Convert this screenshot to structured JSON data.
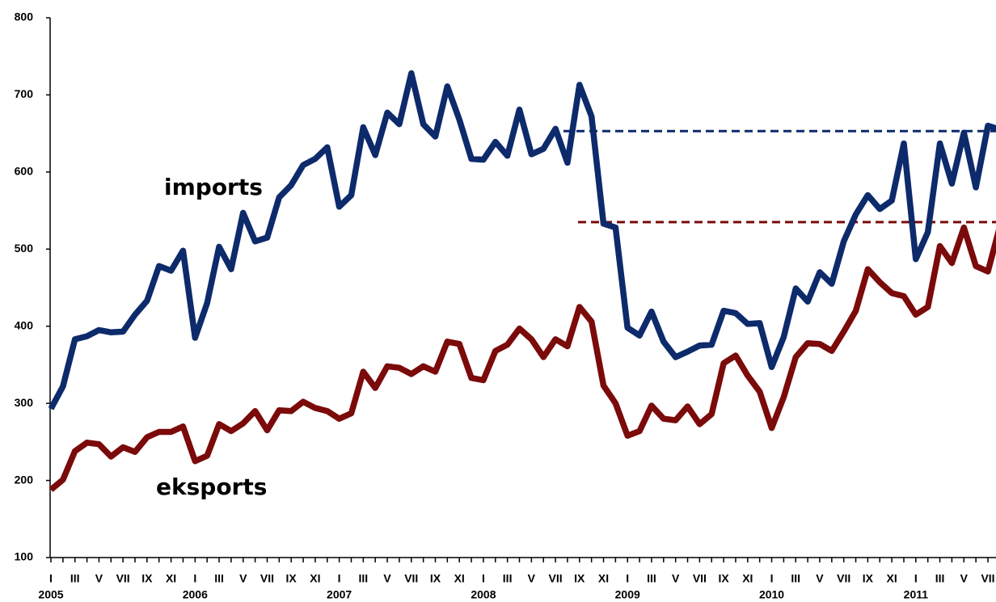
{
  "chart_data": {
    "type": "line",
    "categories": [
      "I",
      null,
      "III",
      null,
      "V",
      null,
      "VII",
      null,
      "IX",
      null,
      "XI",
      null,
      "I",
      null,
      "III",
      null,
      "V",
      null,
      "VII",
      null,
      "IX",
      null,
      "XI",
      null,
      "I",
      null,
      "III",
      null,
      "V",
      null,
      "VII",
      null,
      "IX",
      null,
      "XI",
      null,
      "I",
      null,
      "III",
      null,
      "V",
      null,
      "VII",
      null,
      "IX",
      null,
      "XI",
      null,
      "I",
      null,
      "III",
      null,
      "V",
      null,
      "VII",
      null,
      "IX",
      null,
      "XI",
      null,
      "I",
      null,
      "III",
      null,
      "V",
      null,
      "VII",
      null,
      "IX",
      null,
      "XI",
      null,
      "I",
      null,
      "III",
      null,
      "V",
      null,
      "VII",
      null
    ],
    "years": [
      "2005",
      "2006",
      "2007",
      "2008",
      "2009",
      "2010",
      "2011"
    ],
    "series": [
      {
        "name": "imports",
        "color": "#0d2a6b",
        "values": [
          293,
          322,
          383,
          387,
          395,
          392,
          393,
          415,
          433,
          478,
          472,
          498,
          385,
          430,
          503,
          474,
          547,
          510,
          515,
          567,
          583,
          609,
          617,
          632,
          555,
          570,
          658,
          622,
          677,
          662,
          728,
          662,
          646,
          711,
          668,
          617,
          616,
          639,
          621,
          681,
          623,
          630,
          656,
          612,
          713,
          672,
          533,
          528,
          398,
          388,
          419,
          380,
          360,
          367,
          375,
          376,
          420,
          417,
          403,
          404,
          347,
          386,
          449,
          432,
          470,
          455,
          510,
          545,
          570,
          552,
          563,
          637,
          487,
          522,
          637,
          585,
          651,
          580,
          660,
          655
        ]
      },
      {
        "name": "eksports",
        "color": "#7b0a0a",
        "values": [
          188,
          201,
          238,
          249,
          247,
          231,
          243,
          237,
          256,
          263,
          263,
          270,
          225,
          232,
          273,
          264,
          274,
          290,
          265,
          291,
          290,
          302,
          294,
          290,
          280,
          287,
          341,
          320,
          348,
          346,
          338,
          348,
          341,
          380,
          377,
          333,
          330,
          368,
          376,
          397,
          383,
          360,
          383,
          374,
          425,
          406,
          323,
          300,
          258,
          264,
          297,
          280,
          278,
          296,
          273,
          286,
          352,
          362,
          336,
          315,
          268,
          308,
          360,
          378,
          377,
          368,
          393,
          420,
          474,
          457,
          443,
          439,
          415,
          425,
          504,
          482,
          528,
          478,
          471,
          530
        ]
      }
    ],
    "reference_lines": [
      {
        "value": 653,
        "color": "#0d2a6b"
      },
      {
        "value": 535,
        "color": "#7b0a0a"
      }
    ],
    "ylim": [
      100,
      800
    ],
    "yticks": [
      100,
      200,
      300,
      400,
      500,
      600,
      700,
      800
    ],
    "grid": false
  }
}
